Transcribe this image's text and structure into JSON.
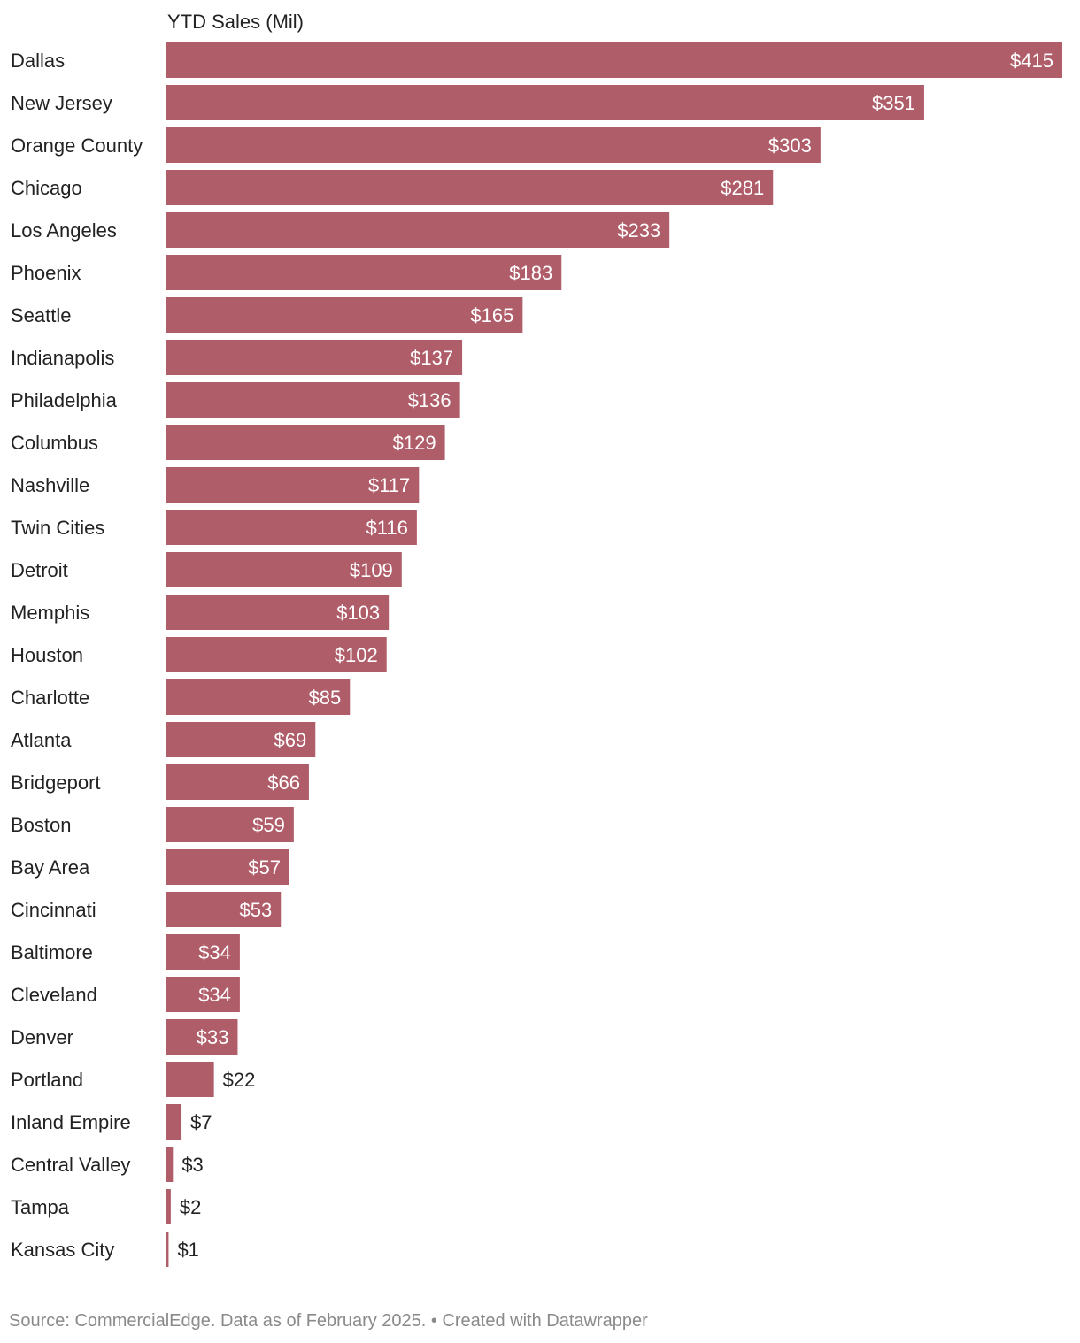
{
  "chart_data": {
    "type": "bar",
    "orientation": "horizontal",
    "title": "",
    "column_header": "YTD Sales (Mil)",
    "xlabel": "",
    "ylabel": "",
    "xlim": [
      0,
      415
    ],
    "grid": false,
    "bar_color": "#b05d6a",
    "value_prefix": "$",
    "categories": [
      "Dallas",
      "New Jersey",
      "Orange County",
      "Chicago",
      "Los Angeles",
      "Phoenix",
      "Seattle",
      "Indianapolis",
      "Philadelphia",
      "Columbus",
      "Nashville",
      "Twin Cities",
      "Detroit",
      "Memphis",
      "Houston",
      "Charlotte",
      "Atlanta",
      "Bridgeport",
      "Boston",
      "Bay Area",
      "Cincinnati",
      "Baltimore",
      "Cleveland",
      "Denver",
      "Portland",
      "Inland Empire",
      "Central Valley",
      "Tampa",
      "Kansas City"
    ],
    "values": [
      415,
      351,
      303,
      281,
      233,
      183,
      165,
      137,
      136,
      129,
      117,
      116,
      109,
      103,
      102,
      85,
      69,
      66,
      59,
      57,
      53,
      34,
      34,
      33,
      22,
      7,
      3,
      2,
      1
    ],
    "value_labels": [
      "$415",
      "$351",
      "$303",
      "$281",
      "$233",
      "$183",
      "$165",
      "$137",
      "$136",
      "$129",
      "$117",
      "$116",
      "$109",
      "$103",
      "$102",
      "$85",
      "$69",
      "$66",
      "$59",
      "$57",
      "$53",
      "$34",
      "$34",
      "$33",
      "$22",
      "$7",
      "$3",
      "$2",
      "$1"
    ]
  },
  "footer": {
    "source_text": "Source: CommercialEdge. Data as of February 2025. • Created with Datawrapper"
  }
}
